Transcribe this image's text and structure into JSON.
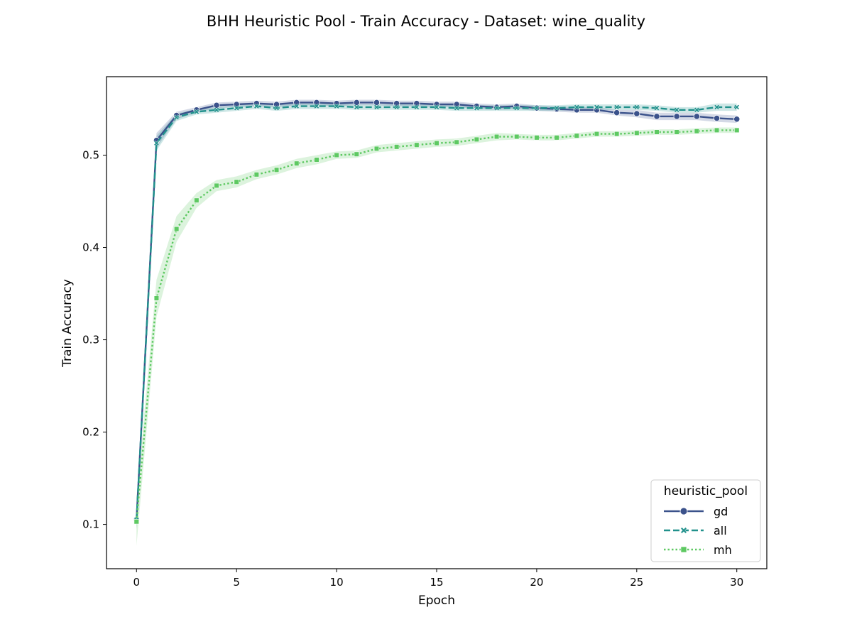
{
  "chart_data": {
    "type": "line",
    "title": "BHH Heuristic Pool - Train Accuracy - Dataset: wine_quality",
    "xlabel": "Epoch",
    "ylabel": "Train Accuracy",
    "xlim": [
      -1.5,
      31.5
    ],
    "ylim": [
      0.052,
      0.585
    ],
    "x_ticks": [
      0,
      5,
      10,
      15,
      20,
      25,
      30
    ],
    "x_tick_labels": [
      "0",
      "5",
      "10",
      "15",
      "20",
      "25",
      "30"
    ],
    "y_ticks": [
      0.1,
      0.2,
      0.3,
      0.4,
      0.5
    ],
    "y_tick_labels": [
      "0.1",
      "0.2",
      "0.3",
      "0.4",
      "0.5"
    ],
    "grid": false,
    "legend": {
      "title": "heuristic_pool",
      "placement": "lower-right"
    },
    "x": [
      0,
      1,
      2,
      3,
      4,
      5,
      6,
      7,
      8,
      9,
      10,
      11,
      12,
      13,
      14,
      15,
      16,
      17,
      18,
      19,
      20,
      21,
      22,
      23,
      24,
      25,
      26,
      27,
      28,
      29,
      30
    ],
    "series": [
      {
        "name": "gd",
        "color": "#3b528b",
        "line_style": "solid",
        "marker": "circle",
        "values": [
          0.105,
          0.516,
          0.543,
          0.549,
          0.554,
          0.555,
          0.556,
          0.555,
          0.557,
          0.557,
          0.556,
          0.557,
          0.557,
          0.556,
          0.556,
          0.555,
          0.555,
          0.553,
          0.552,
          0.553,
          0.551,
          0.55,
          0.549,
          0.549,
          0.546,
          0.545,
          0.542,
          0.542,
          0.542,
          0.54,
          0.539
        ],
        "band_half_width": [
          0.01,
          0.008,
          0.004,
          0.003,
          0.003,
          0.003,
          0.003,
          0.003,
          0.003,
          0.003,
          0.003,
          0.003,
          0.003,
          0.003,
          0.003,
          0.003,
          0.003,
          0.003,
          0.003,
          0.003,
          0.003,
          0.003,
          0.003,
          0.003,
          0.003,
          0.004,
          0.004,
          0.004,
          0.004,
          0.004,
          0.004
        ]
      },
      {
        "name": "all",
        "color": "#21918c",
        "line_style": "dashed",
        "marker": "x",
        "values": [
          0.105,
          0.513,
          0.541,
          0.547,
          0.549,
          0.551,
          0.553,
          0.551,
          0.553,
          0.553,
          0.553,
          0.552,
          0.552,
          0.552,
          0.552,
          0.552,
          0.551,
          0.551,
          0.551,
          0.551,
          0.551,
          0.551,
          0.552,
          0.552,
          0.552,
          0.552,
          0.551,
          0.549,
          0.549,
          0.552,
          0.552
        ],
        "band_half_width": [
          0.01,
          0.008,
          0.004,
          0.003,
          0.003,
          0.003,
          0.003,
          0.003,
          0.003,
          0.003,
          0.003,
          0.003,
          0.003,
          0.003,
          0.003,
          0.003,
          0.003,
          0.003,
          0.003,
          0.003,
          0.003,
          0.003,
          0.003,
          0.003,
          0.003,
          0.003,
          0.003,
          0.003,
          0.003,
          0.004,
          0.004
        ]
      },
      {
        "name": "mh",
        "color": "#5ec962",
        "line_style": "dotted",
        "marker": "square",
        "values": [
          0.103,
          0.345,
          0.42,
          0.451,
          0.467,
          0.471,
          0.479,
          0.484,
          0.491,
          0.495,
          0.5,
          0.501,
          0.507,
          0.509,
          0.511,
          0.513,
          0.514,
          0.517,
          0.52,
          0.52,
          0.519,
          0.519,
          0.521,
          0.523,
          0.523,
          0.524,
          0.525,
          0.525,
          0.526,
          0.527,
          0.527
        ],
        "band_half_width": [
          0.026,
          0.02,
          0.014,
          0.008,
          0.006,
          0.006,
          0.005,
          0.005,
          0.005,
          0.005,
          0.004,
          0.004,
          0.004,
          0.004,
          0.004,
          0.004,
          0.004,
          0.004,
          0.004,
          0.003,
          0.003,
          0.003,
          0.003,
          0.003,
          0.003,
          0.003,
          0.003,
          0.003,
          0.003,
          0.003,
          0.003
        ]
      }
    ]
  }
}
